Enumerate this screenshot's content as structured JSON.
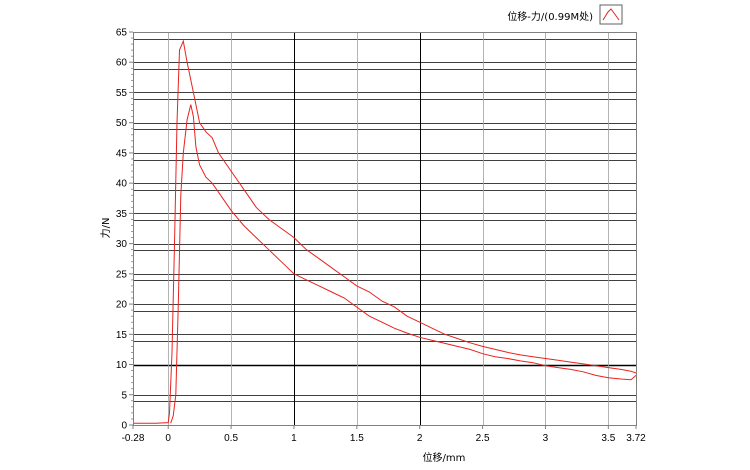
{
  "chart_data": {
    "type": "line",
    "title": "",
    "xlabel": "位移/mm",
    "ylabel": "力/N",
    "xlim": [
      -0.28,
      3.72
    ],
    "ylim": [
      0,
      65
    ],
    "x_ticks": [
      "-0.28",
      "0",
      "0.5",
      "1",
      "1.5",
      "2",
      "2.5",
      "3",
      "3.5",
      "3.72"
    ],
    "x_tick_values": [
      -0.28,
      0,
      0.5,
      1,
      1.5,
      2,
      2.5,
      3,
      3.5,
      3.72
    ],
    "y_ticks": [
      "0",
      "5",
      "10",
      "15",
      "20",
      "25",
      "30",
      "35",
      "40",
      "45",
      "50",
      "55",
      "60",
      "65"
    ],
    "y_tick_values": [
      0,
      5,
      10,
      15,
      20,
      25,
      30,
      35,
      40,
      45,
      50,
      55,
      60,
      65
    ],
    "grid": true,
    "legend": {
      "position": "top-right",
      "entries": [
        "位移-力/(0.99M处)"
      ]
    },
    "colors": {
      "series": "#e8231e",
      "grid_dark": "#000000",
      "grid_light": "#a0a0a0",
      "axis": "#808080"
    },
    "series": [
      {
        "name": "位移-力/(0.99M处)",
        "segments": [
          {
            "x": [
              -0.28,
              -0.1,
              0.0,
              0.01,
              0.03,
              0.05,
              0.07,
              0.09,
              0.12,
              0.15,
              0.2,
              0.25,
              0.3,
              0.35,
              0.4,
              0.5,
              0.6,
              0.7,
              0.8,
              0.9,
              1.0,
              1.1,
              1.2,
              1.3,
              1.4,
              1.5,
              1.6,
              1.7,
              1.8,
              1.9,
              2.0,
              2.1,
              2.2,
              2.3,
              2.4,
              2.5,
              2.6,
              2.7,
              2.8,
              2.9,
              3.0,
              3.1,
              3.2,
              3.3,
              3.4,
              3.5,
              3.6,
              3.68,
              3.72
            ],
            "y": [
              0.3,
              0.3,
              0.4,
              2,
              12,
              30,
              50,
              62,
              63.5,
              60,
              55,
              50,
              48.5,
              47.5,
              45,
              42,
              39,
              36,
              34,
              32.5,
              31,
              29,
              27.5,
              26,
              24.5,
              23,
              22,
              20.5,
              19.5,
              18,
              17,
              16,
              15,
              14.3,
              13.6,
              13,
              12.5,
              12,
              11.6,
              11.3,
              11,
              10.7,
              10.4,
              10.1,
              9.8,
              9.5,
              9.2,
              8.9,
              8.6
            ]
          },
          {
            "x": [
              3.72,
              3.68,
              3.6,
              3.5,
              3.4,
              3.3,
              3.2,
              3.1,
              3.0,
              2.9,
              2.8,
              2.7,
              2.6,
              2.5,
              2.4,
              2.3,
              2.2,
              2.1,
              2.0,
              1.9,
              1.8,
              1.7,
              1.6,
              1.5,
              1.4,
              1.3,
              1.2,
              1.1,
              1.0,
              0.9,
              0.8,
              0.7,
              0.6,
              0.5,
              0.4,
              0.35,
              0.3,
              0.25,
              0.22,
              0.2,
              0.18,
              0.15,
              0.12,
              0.1,
              0.08,
              0.06,
              0.04,
              0.02
            ],
            "y": [
              8.2,
              7.5,
              7.6,
              7.8,
              8.2,
              8.8,
              9.2,
              9.5,
              9.8,
              10.3,
              10.6,
              11.0,
              11.3,
              11.8,
              12.5,
              13.0,
              13.5,
              14.0,
              14.5,
              15.2,
              16.0,
              17.0,
              18.0,
              19.5,
              21.0,
              22.0,
              23.0,
              24.0,
              25.0,
              27.0,
              29.0,
              31.0,
              33.0,
              35.5,
              38.5,
              40.0,
              41.0,
              43.0,
              46.0,
              51.0,
              53.0,
              50.5,
              45.0,
              38.0,
              20.0,
              5.0,
              1.5,
              0.3
            ]
          }
        ]
      }
    ]
  }
}
